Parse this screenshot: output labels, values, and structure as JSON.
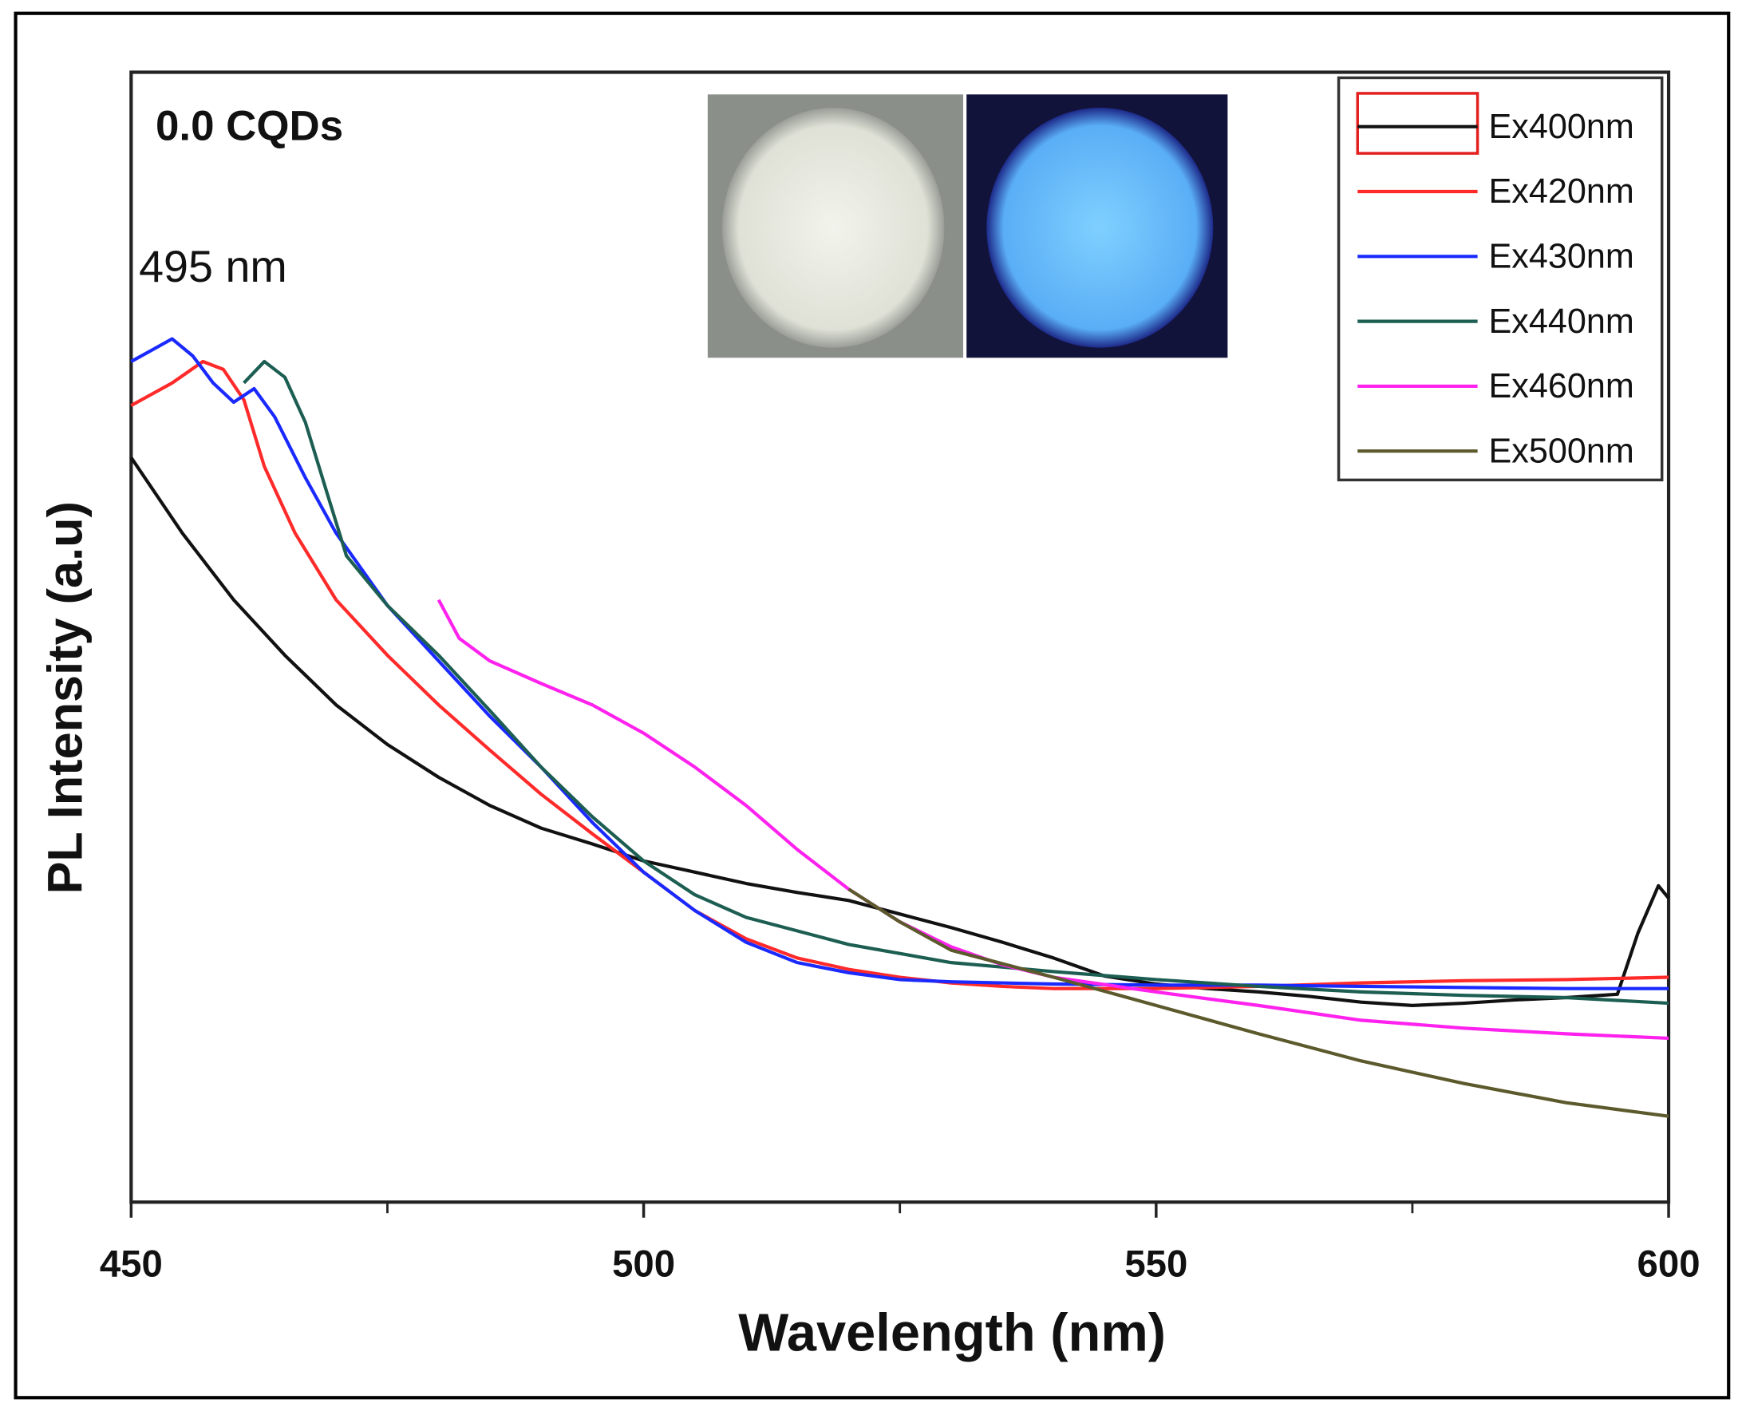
{
  "chart_data": {
    "type": "line",
    "title": "0.0 CQDs",
    "annotation": "495 nm",
    "xlabel": "Wavelength (nm)",
    "ylabel": "PL Intensity (a.u)",
    "xlim": [
      450,
      600
    ],
    "xticks": [
      450,
      500,
      550,
      600
    ],
    "xminor_ticks": [
      475,
      525,
      575
    ],
    "ylim": [
      0,
      100
    ],
    "legend": "upper right",
    "series": [
      {
        "name": "Ex400nm",
        "color": "#111111",
        "x": [
          450,
          455,
          460,
          465,
          470,
          475,
          480,
          485,
          490,
          495,
          500,
          505,
          510,
          515,
          520,
          525,
          530,
          535,
          540,
          545,
          550,
          555,
          560,
          565,
          570,
          575,
          580,
          585,
          590,
          595,
          597,
          599,
          600
        ],
        "values": [
          65.9,
          59.2,
          53.3,
          48.4,
          44.0,
          40.5,
          37.6,
          35.1,
          33.1,
          31.7,
          30.2,
          29.2,
          28.2,
          27.4,
          26.7,
          25.5,
          24.3,
          23.0,
          21.6,
          20.0,
          19.3,
          18.9,
          18.6,
          18.2,
          17.7,
          17.4,
          17.6,
          17.9,
          18.1,
          18.4,
          23.8,
          28.0,
          26.9
        ]
      },
      {
        "name": "Ex420nm",
        "color": "#ff2a2a",
        "x": [
          450,
          452,
          454,
          457,
          459,
          461,
          463,
          466,
          470,
          475,
          480,
          485,
          490,
          495,
          500,
          505,
          510,
          515,
          520,
          525,
          530,
          535,
          540,
          550,
          560,
          570,
          580,
          590,
          600
        ],
        "values": [
          70.5,
          71.5,
          72.5,
          74.4,
          73.7,
          71.0,
          65.1,
          59.2,
          53.3,
          48.4,
          44.0,
          40.0,
          36.1,
          32.6,
          29.2,
          25.8,
          23.3,
          21.6,
          20.6,
          19.9,
          19.4,
          19.1,
          18.9,
          18.9,
          19.1,
          19.4,
          19.6,
          19.7,
          19.9
        ]
      },
      {
        "name": "Ex430nm",
        "color": "#1a2aff",
        "x": [
          450,
          452,
          454,
          456,
          458,
          460,
          462,
          464,
          467,
          470,
          475,
          480,
          485,
          490,
          495,
          500,
          505,
          510,
          515,
          520,
          525,
          530,
          540,
          550,
          560,
          570,
          580,
          590,
          600
        ],
        "values": [
          74.4,
          75.4,
          76.4,
          74.9,
          72.5,
          70.8,
          72.0,
          69.5,
          64.1,
          59.2,
          52.8,
          47.9,
          43.0,
          38.5,
          33.6,
          29.2,
          25.8,
          23.0,
          21.2,
          20.3,
          19.7,
          19.5,
          19.3,
          19.2,
          19.2,
          19.1,
          19.0,
          18.9,
          18.9
        ]
      },
      {
        "name": "Ex440nm",
        "color": "#1d5e52",
        "x": [
          461,
          463,
          465,
          467,
          469,
          471,
          475,
          480,
          485,
          490,
          495,
          500,
          505,
          510,
          520,
          530,
          540,
          550,
          560,
          570,
          580,
          590,
          600
        ],
        "values": [
          72.5,
          74.4,
          73.0,
          69.0,
          63.1,
          57.2,
          52.8,
          48.4,
          43.5,
          38.5,
          34.1,
          30.2,
          27.2,
          25.2,
          22.8,
          21.2,
          20.4,
          19.7,
          19.1,
          18.6,
          18.3,
          18.1,
          17.6
        ]
      },
      {
        "name": "Ex460nm",
        "color": "#ff22ee",
        "x": [
          480,
          482,
          485,
          490,
          495,
          500,
          505,
          510,
          515,
          520,
          525,
          530,
          535,
          540,
          550,
          560,
          570,
          580,
          590,
          600
        ],
        "values": [
          53.3,
          49.9,
          47.9,
          45.9,
          44.0,
          41.5,
          38.5,
          35.1,
          31.2,
          27.7,
          24.8,
          22.6,
          21.0,
          19.9,
          18.6,
          17.4,
          16.1,
          15.4,
          14.9,
          14.5
        ]
      },
      {
        "name": "Ex500nm",
        "color": "#5c5a2c",
        "x": [
          520,
          525,
          530,
          540,
          550,
          560,
          570,
          580,
          590,
          600
        ],
        "values": [
          27.7,
          24.8,
          22.3,
          19.9,
          17.4,
          14.9,
          12.5,
          10.5,
          8.8,
          7.6
        ]
      }
    ]
  }
}
